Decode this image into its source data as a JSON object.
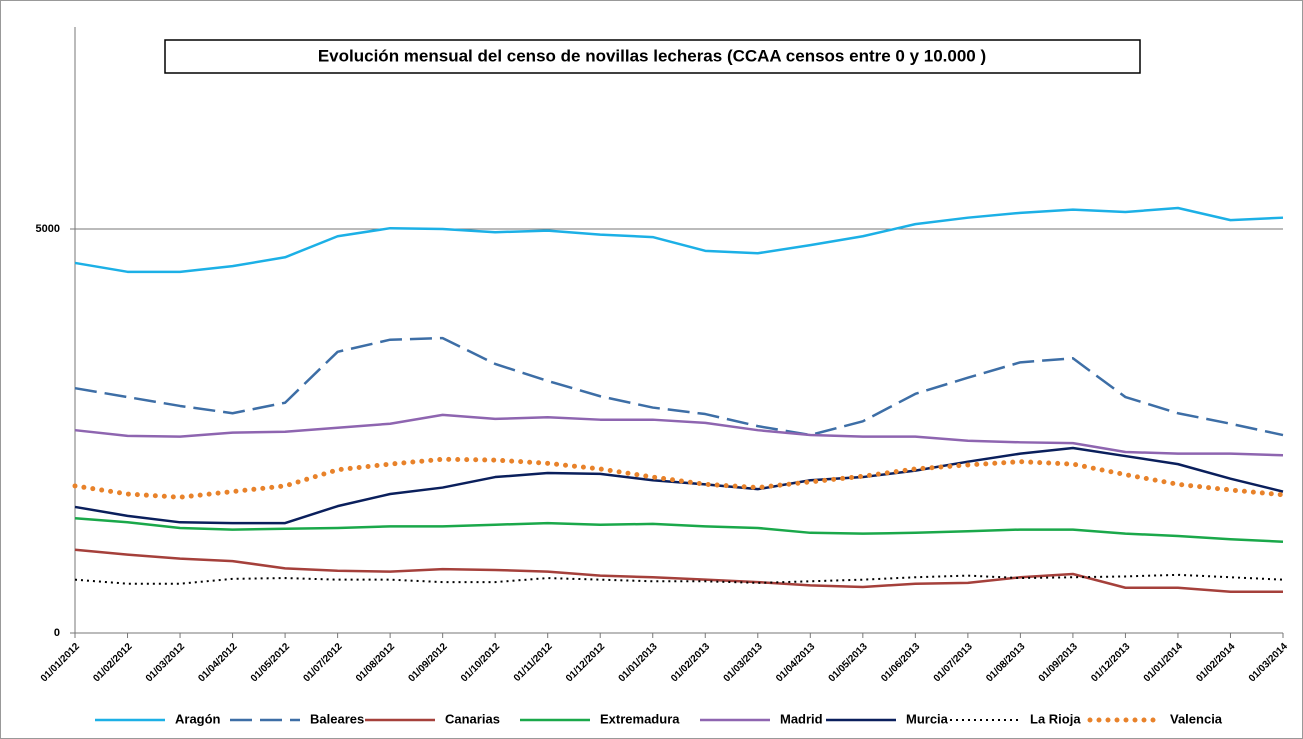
{
  "chart_data": {
    "type": "line",
    "title": "Evolución mensual del censo de novillas lecheras (CCAA censos entre 0 y 10.000 )",
    "categories": [
      "01/01/2012",
      "01/02/2012",
      "01/03/2012",
      "01/04/2012",
      "01/05/2012",
      "01/07/2012",
      "01/08/2012",
      "01/09/2012",
      "01/10/2012",
      "01/11/2012",
      "01/12/2012",
      "01/01/2013",
      "01/02/2013",
      "01/03/2013",
      "01/04/2013",
      "01/05/2013",
      "01/06/2013",
      "01/07/2013",
      "01/08/2013",
      "01/09/2013",
      "01/12/2013",
      "01/01/2014",
      "01/02/2014",
      "01/03/2014"
    ],
    "ylim": [
      0,
      7500
    ],
    "yticks": [
      0,
      5000
    ],
    "grid": true,
    "legend": "bottom",
    "series": [
      {
        "name": "Aragón",
        "color": "#1cb0e6",
        "dash": "solid",
        "values": [
          4580,
          4470,
          4470,
          4540,
          4650,
          4910,
          5010,
          5000,
          4960,
          4980,
          4930,
          4900,
          4730,
          4700,
          4800,
          4910,
          5060,
          5140,
          5200,
          5240,
          5210,
          5260,
          5110,
          5140
        ]
      },
      {
        "name": "Baleares",
        "color": "#3d6ea6",
        "dash": "dashed",
        "values": [
          3030,
          2920,
          2810,
          2720,
          2850,
          3480,
          3630,
          3650,
          3330,
          3120,
          2930,
          2790,
          2710,
          2560,
          2450,
          2620,
          2960,
          3160,
          3350,
          3400,
          2920,
          2720,
          2590,
          2450
        ]
      },
      {
        "name": "Canarias",
        "color": "#a5403b",
        "dash": "solid",
        "values": [
          1030,
          970,
          920,
          890,
          800,
          770,
          760,
          790,
          780,
          760,
          710,
          690,
          660,
          630,
          590,
          570,
          610,
          620,
          690,
          730,
          560,
          560,
          510,
          510
        ]
      },
      {
        "name": "Extremadura",
        "color": "#1aa84a",
        "dash": "solid",
        "values": [
          1420,
          1370,
          1300,
          1280,
          1290,
          1300,
          1320,
          1320,
          1340,
          1360,
          1340,
          1350,
          1320,
          1300,
          1240,
          1230,
          1240,
          1260,
          1280,
          1280,
          1230,
          1200,
          1160,
          1130
        ]
      },
      {
        "name": "Madrid",
        "color": "#8e65b0",
        "dash": "solid",
        "values": [
          2510,
          2440,
          2430,
          2480,
          2490,
          2540,
          2590,
          2700,
          2650,
          2670,
          2640,
          2640,
          2600,
          2510,
          2450,
          2430,
          2430,
          2380,
          2360,
          2350,
          2240,
          2220,
          2220,
          2200
        ]
      },
      {
        "name": "Murcia",
        "color": "#0a1f5c",
        "dash": "solid",
        "values": [
          1560,
          1450,
          1370,
          1360,
          1360,
          1570,
          1720,
          1800,
          1930,
          1980,
          1970,
          1890,
          1840,
          1780,
          1890,
          1930,
          2010,
          2120,
          2220,
          2290,
          2190,
          2090,
          1910,
          1750
        ]
      },
      {
        "name": "La Rioja",
        "color": "#000000",
        "dash": "dotted",
        "values": [
          660,
          610,
          610,
          670,
          680,
          660,
          660,
          630,
          630,
          680,
          660,
          640,
          640,
          620,
          640,
          660,
          690,
          710,
          680,
          690,
          700,
          720,
          690,
          660
        ]
      },
      {
        "name": "Valencia",
        "color": "#e8822a",
        "dash": "bigdot",
        "values": [
          1820,
          1720,
          1680,
          1750,
          1820,
          2020,
          2090,
          2150,
          2140,
          2100,
          2030,
          1930,
          1840,
          1800,
          1870,
          1940,
          2030,
          2080,
          2120,
          2090,
          1960,
          1840,
          1770,
          1710
        ]
      }
    ]
  }
}
